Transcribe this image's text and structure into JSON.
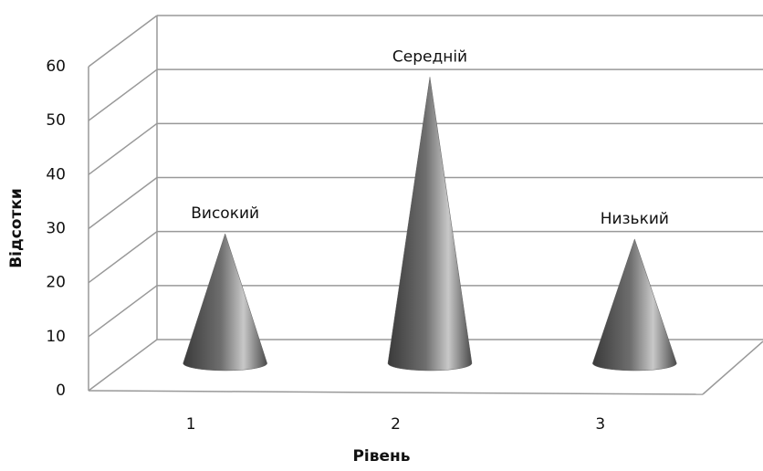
{
  "chart_data": {
    "type": "cone3d",
    "x_label": "Рівень",
    "y_label": "Відсотки",
    "categories": [
      "1",
      "2",
      "3"
    ],
    "values": [
      24,
      53,
      23
    ],
    "annotations": [
      "Високий",
      "Середній",
      "Низький"
    ],
    "color": "#606060",
    "ylim": [
      0,
      60
    ],
    "yticks": [
      0,
      10,
      20,
      30,
      40,
      50,
      60
    ],
    "grid": true
  }
}
